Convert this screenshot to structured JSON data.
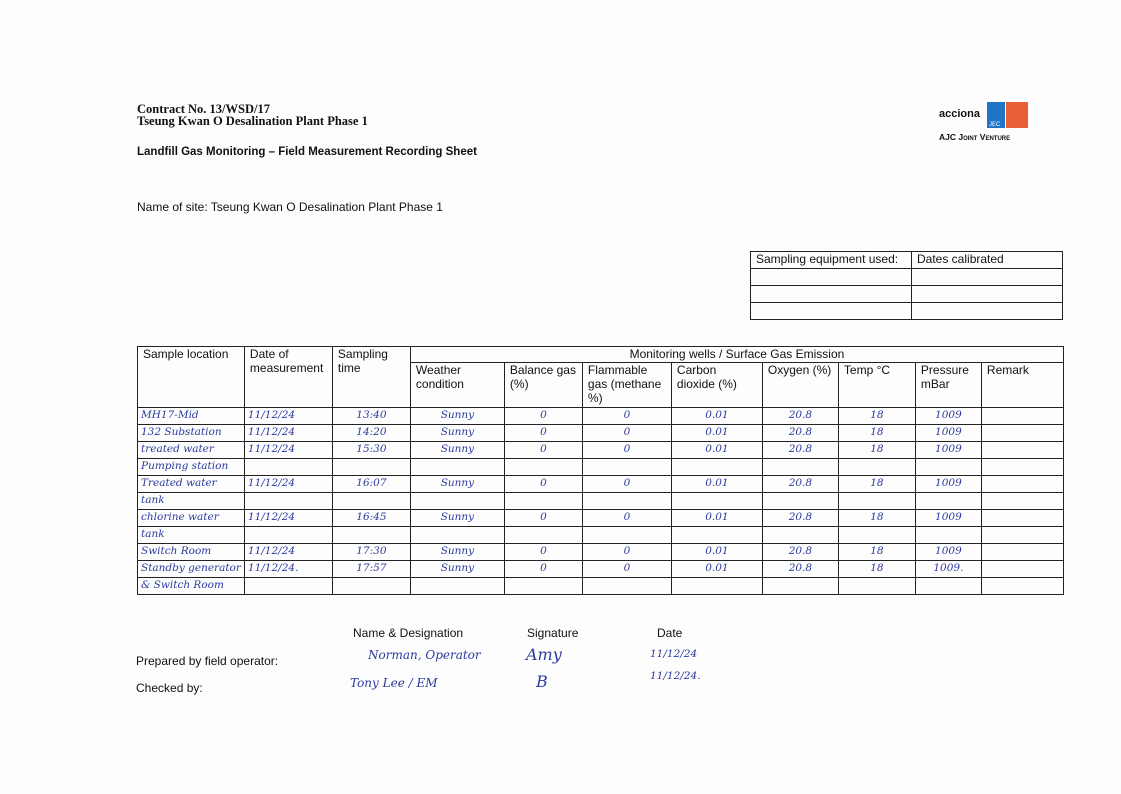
{
  "header": {
    "contract": "Contract No. 13/WSD/17",
    "project": "Tseung Kwan O Desalination Plant Phase 1",
    "sheet_title": "Landfill Gas Monitoring – Field Measurement Recording Sheet",
    "site_label": "Name of site: Tseung Kwan O Desalination Plant Phase 1",
    "logo": {
      "brand1": "acciona",
      "brand2": "JEC",
      "caption": "AJC Joint Venture",
      "colors": {
        "blue": "#1f74c8",
        "orange": "#e8603a"
      }
    }
  },
  "equipment": {
    "headers": [
      "Sampling equipment used:",
      "Dates calibrated"
    ],
    "rows": [
      [
        "",
        ""
      ],
      [
        "",
        ""
      ],
      [
        "",
        ""
      ]
    ]
  },
  "table": {
    "group_header": "Monitoring wells / Surface Gas Emission",
    "headers": [
      "Sample location",
      "Date of measurement",
      "Sampling time",
      "Weather condition",
      "Balance gas (%)",
      "Flammable gas (methane %)",
      "Carbon dioxide (%)",
      "Oxygen (%)",
      "Temp °C",
      "Pressure mBar",
      "Remark"
    ],
    "rows": [
      [
        "MH17-Mid",
        "11/12/24",
        "13:40",
        "Sunny",
        "0",
        "0",
        "0.01",
        "20.8",
        "18",
        "1009",
        ""
      ],
      [
        "132 Substation",
        "11/12/24",
        "14:20",
        "Sunny",
        "0",
        "0",
        "0.01",
        "20.8",
        "18",
        "1009",
        ""
      ],
      [
        "treated water",
        "11/12/24",
        "15:30",
        "Sunny",
        "0",
        "0",
        "0.01",
        "20.8",
        "18",
        "1009",
        ""
      ],
      [
        "Pumping station",
        "",
        "",
        "",
        "",
        "",
        "",
        "",
        "",
        "",
        ""
      ],
      [
        "Treated water",
        "11/12/24",
        "16:07",
        "Sunny",
        "0",
        "0",
        "0.01",
        "20.8",
        "18",
        "1009",
        ""
      ],
      [
        "tank",
        "",
        "",
        "",
        "",
        "",
        "",
        "",
        "",
        "",
        ""
      ],
      [
        "chlorine water",
        "11/12/24",
        "16:45",
        "Sunny",
        "0",
        "0",
        "0.01",
        "20.8",
        "18",
        "1009",
        ""
      ],
      [
        "tank",
        "",
        "",
        "",
        "",
        "",
        "",
        "",
        "",
        "",
        ""
      ],
      [
        "Switch Room",
        "11/12/24",
        "17:30",
        "Sunny",
        "0",
        "0",
        "0.01",
        "20.8",
        "18",
        "1009",
        ""
      ],
      [
        "Standby generator",
        "11/12/24.",
        "17:57",
        "Sunny",
        "0",
        "0",
        "0.01",
        "20.8",
        "18",
        "1009.",
        ""
      ],
      [
        "& Switch Room",
        "",
        "",
        "",
        "",
        "",
        "",
        "",
        "",
        "",
        ""
      ]
    ]
  },
  "signoff": {
    "col_headers": [
      "Name & Designation",
      "Signature",
      "Date"
    ],
    "prepared_label": "Prepared by field operator:",
    "checked_label": "Checked by:",
    "prepared": {
      "name": "Norman, Operator",
      "signature": "Amy",
      "date": "11/12/24"
    },
    "checked": {
      "name": "Tony Lee / EM",
      "signature": "B",
      "date": "11/12/24."
    }
  }
}
